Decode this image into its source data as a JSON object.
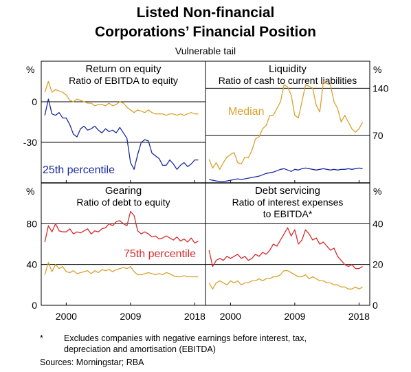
{
  "figure": {
    "title_line1": "Listed Non-financial",
    "title_line2": "Corporations’ Financial Position",
    "subtitle": "Vulnerable tail",
    "footnote_marker": "*",
    "footnote_line1": "Excludes companies with negative earnings before interest, tax,",
    "footnote_line2": "depreciation and amortisation (EBITDA)",
    "sources": "Sources:   Morningstar; RBA",
    "colors": {
      "median": "#d9a12c",
      "percentile25": "#1a2aa0",
      "percentile75": "#d9292c"
    }
  },
  "chart_data": [
    {
      "type": "line",
      "panel": "top-left",
      "title": "Return on equity",
      "subtitle_lines": [
        "Ratio of EBITDA to equity"
      ],
      "axis_unit": "%",
      "ylim": [
        -60,
        30
      ],
      "yticks": [
        0,
        -30
      ],
      "xlim": [
        1996.5,
        2019.5
      ],
      "xticks": [
        2000,
        2009,
        2018
      ],
      "xtick_labels": [
        "2000",
        "2009",
        "2018"
      ],
      "annotations": [
        {
          "text": "25th percentile",
          "color": "#1a2aa0"
        }
      ],
      "series": [
        {
          "color": "#d9a12c",
          "x": [
            1997,
            1997.5,
            1998,
            1998.5,
            1999,
            1999.5,
            2000,
            2000.5,
            2001,
            2001.5,
            2002,
            2002.5,
            2003,
            2003.5,
            2004,
            2004.5,
            2005,
            2005.5,
            2006,
            2006.5,
            2007,
            2007.5,
            2008,
            2008.5,
            2009,
            2009.5,
            2010,
            2010.5,
            2011,
            2011.5,
            2012,
            2012.5,
            2013,
            2013.5,
            2014,
            2014.5,
            2015,
            2015.5,
            2016,
            2016.5,
            2017,
            2017.5,
            2018,
            2018.5
          ],
          "values": [
            7,
            15,
            7,
            9,
            8,
            7,
            5,
            1,
            0,
            2,
            1,
            0,
            -1,
            -1,
            -3,
            -2,
            -2,
            -3,
            -1,
            -3,
            -2,
            0,
            -1,
            -4,
            -6,
            -8,
            -6,
            -7,
            -8,
            -6,
            -8,
            -9,
            -9,
            -9,
            -10,
            -9,
            -9,
            -10,
            -9,
            -10,
            -9,
            -8,
            -9,
            -9
          ]
        },
        {
          "color": "#1a2aa0",
          "x": [
            1997,
            1997.5,
            1998,
            1998.5,
            1999,
            1999.5,
            2000,
            2000.5,
            2001,
            2001.5,
            2002,
            2002.5,
            2003,
            2003.5,
            2004,
            2004.5,
            2005,
            2005.5,
            2006,
            2006.5,
            2007,
            2007.5,
            2008,
            2008.5,
            2009,
            2009.5,
            2010,
            2010.5,
            2011,
            2011.5,
            2012,
            2012.5,
            2013,
            2013.5,
            2014,
            2014.5,
            2015,
            2015.5,
            2016,
            2016.5,
            2017,
            2017.5,
            2018,
            2018.5
          ],
          "values": [
            -10,
            2,
            -9,
            -10,
            -8,
            -12,
            -12,
            -17,
            -24,
            -26,
            -20,
            -18,
            -21,
            -20,
            -18,
            -21,
            -23,
            -20,
            -22,
            -21,
            -23,
            -19,
            -23,
            -27,
            -45,
            -50,
            -39,
            -30,
            -28,
            -29,
            -38,
            -40,
            -42,
            -47,
            -47,
            -43,
            -46,
            -50,
            -47,
            -45,
            -48,
            -46,
            -43,
            -43
          ]
        }
      ]
    },
    {
      "type": "line",
      "panel": "top-right",
      "title": "Liquidity",
      "subtitle_lines": [
        "Ratio of cash to current liabilities"
      ],
      "axis_unit": "%",
      "ylim": [
        0,
        180
      ],
      "yticks": [
        140,
        70
      ],
      "xlim": [
        1996.5,
        2019.5
      ],
      "xticks": [
        2000,
        2009,
        2018
      ],
      "xtick_labels": [
        "2000",
        "2009",
        "2018"
      ],
      "annotations": [
        {
          "text": "Median",
          "color": "#d9a12c"
        }
      ],
      "series": [
        {
          "color": "#d9a12c",
          "x": [
            1997,
            1997.5,
            1998,
            1998.5,
            1999,
            1999.5,
            2000,
            2000.5,
            2001,
            2001.5,
            2002,
            2002.5,
            2003,
            2003.5,
            2004,
            2004.5,
            2005,
            2005.5,
            2006,
            2006.5,
            2007,
            2007.5,
            2008,
            2008.5,
            2009,
            2009.5,
            2010,
            2010.5,
            2011,
            2011.5,
            2012,
            2012.5,
            2013,
            2013.5,
            2014,
            2014.5,
            2015,
            2015.5,
            2016,
            2016.5,
            2017,
            2017.5,
            2018,
            2018.5
          ],
          "values": [
            35,
            22,
            30,
            20,
            30,
            38,
            42,
            45,
            30,
            28,
            38,
            37,
            48,
            65,
            68,
            80,
            85,
            100,
            100,
            110,
            120,
            145,
            142,
            130,
            100,
            96,
            120,
            145,
            143,
            140,
            115,
            105,
            150,
            147,
            145,
            120,
            110,
            90,
            100,
            90,
            80,
            75,
            80,
            90
          ]
        },
        {
          "color": "#1a2aa0",
          "x": [
            1997,
            1997.5,
            1998,
            1998.5,
            1999,
            1999.5,
            2000,
            2000.5,
            2001,
            2001.5,
            2002,
            2002.5,
            2003,
            2003.5,
            2004,
            2004.5,
            2005,
            2005.5,
            2006,
            2006.5,
            2007,
            2007.5,
            2008,
            2008.5,
            2009,
            2009.5,
            2010,
            2010.5,
            2011,
            2011.5,
            2012,
            2012.5,
            2013,
            2013.5,
            2014,
            2014.5,
            2015,
            2015.5,
            2016,
            2016.5,
            2017,
            2017.5,
            2018,
            2018.5
          ],
          "values": [
            5,
            4,
            3,
            2,
            2,
            3,
            4,
            5,
            6,
            5,
            6,
            7,
            8,
            9,
            10,
            12,
            14,
            15,
            16,
            18,
            20,
            21,
            19,
            17,
            20,
            19,
            21,
            22,
            21,
            20,
            19,
            20,
            21,
            20,
            19,
            20,
            19,
            20,
            20,
            21,
            20,
            21,
            22,
            21
          ]
        }
      ]
    },
    {
      "type": "line",
      "panel": "bottom-left",
      "title": "Gearing",
      "subtitle_lines": [
        "Ratio of debt to equity"
      ],
      "axis_unit": "%",
      "ylim": [
        0,
        120
      ],
      "yticks": [
        80,
        40,
        0
      ],
      "xlim": [
        1996.5,
        2019.5
      ],
      "xticks": [
        2000,
        2009,
        2018
      ],
      "xtick_labels": [
        "2000",
        "2009",
        "2018"
      ],
      "annotations": [
        {
          "text": "75th percentile",
          "color": "#d9292c"
        }
      ],
      "series": [
        {
          "color": "#d9292c",
          "x": [
            1997,
            1997.5,
            1998,
            1998.5,
            1999,
            1999.5,
            2000,
            2000.5,
            2001,
            2001.5,
            2002,
            2002.5,
            2003,
            2003.5,
            2004,
            2004.5,
            2005,
            2005.5,
            2006,
            2006.5,
            2007,
            2007.5,
            2008,
            2008.5,
            2009,
            2009.5,
            2010,
            2010.5,
            2011,
            2011.5,
            2012,
            2012.5,
            2013,
            2013.5,
            2014,
            2014.5,
            2015,
            2015.5,
            2016,
            2016.5,
            2017,
            2017.5,
            2018,
            2018.5
          ],
          "values": [
            62,
            78,
            72,
            80,
            73,
            72,
            72,
            75,
            70,
            72,
            71,
            73,
            75,
            70,
            73,
            72,
            75,
            76,
            80,
            78,
            82,
            83,
            80,
            78,
            92,
            88,
            73,
            70,
            72,
            70,
            67,
            68,
            65,
            66,
            68,
            66,
            64,
            67,
            63,
            65,
            62,
            66,
            61,
            63
          ]
        },
        {
          "color": "#d9a12c",
          "x": [
            1997,
            1997.5,
            1998,
            1998.5,
            1999,
            1999.5,
            2000,
            2000.5,
            2001,
            2001.5,
            2002,
            2002.5,
            2003,
            2003.5,
            2004,
            2004.5,
            2005,
            2005.5,
            2006,
            2006.5,
            2007,
            2007.5,
            2008,
            2008.5,
            2009,
            2009.5,
            2010,
            2010.5,
            2011,
            2011.5,
            2012,
            2012.5,
            2013,
            2013.5,
            2014,
            2014.5,
            2015,
            2015.5,
            2016,
            2016.5,
            2017,
            2017.5,
            2018,
            2018.5
          ],
          "values": [
            30,
            42,
            33,
            40,
            36,
            38,
            33,
            32,
            34,
            31,
            32,
            33,
            34,
            31,
            34,
            32,
            35,
            34,
            35,
            33,
            35,
            36,
            37,
            36,
            38,
            33,
            30,
            30,
            31,
            32,
            31,
            30,
            31,
            30,
            32,
            31,
            29,
            28,
            28,
            29,
            28,
            28,
            28,
            28
          ]
        }
      ]
    },
    {
      "type": "line",
      "panel": "bottom-right",
      "title": "Debt servicing",
      "subtitle_lines": [
        "Ratio of interest expenses",
        "to EBITDA*"
      ],
      "axis_unit": "%",
      "ylim": [
        0,
        60
      ],
      "yticks": [
        40,
        20,
        0
      ],
      "xlim": [
        1996.5,
        2019.5
      ],
      "xticks": [
        2000,
        2009,
        2018
      ],
      "xtick_labels": [
        "2000",
        "2009",
        "2018"
      ],
      "series": [
        {
          "color": "#d9292c",
          "x": [
            1997,
            1997.5,
            1998,
            1998.5,
            1999,
            1999.5,
            2000,
            2000.5,
            2001,
            2001.5,
            2002,
            2002.5,
            2003,
            2003.5,
            2004,
            2004.5,
            2005,
            2005.5,
            2006,
            2006.5,
            2007,
            2007.5,
            2008,
            2008.5,
            2009,
            2009.5,
            2010,
            2010.5,
            2011,
            2011.5,
            2012,
            2012.5,
            2013,
            2013.5,
            2014,
            2014.5,
            2015,
            2015.5,
            2016,
            2016.5,
            2017,
            2017.5,
            2018,
            2018.5
          ],
          "values": [
            27,
            19,
            22,
            23,
            22,
            24,
            23,
            24,
            25,
            23,
            24,
            22,
            23,
            25,
            24,
            26,
            25,
            27,
            30,
            29,
            32,
            35,
            38,
            34,
            37,
            30,
            32,
            37,
            35,
            32,
            33,
            30,
            31,
            29,
            27,
            28,
            24,
            22,
            20,
            19,
            20,
            18,
            18,
            19
          ]
        },
        {
          "color": "#d9a12c",
          "x": [
            1997,
            1997.5,
            1998,
            1998.5,
            1999,
            1999.5,
            2000,
            2000.5,
            2001,
            2001.5,
            2002,
            2002.5,
            2003,
            2003.5,
            2004,
            2004.5,
            2005,
            2005.5,
            2006,
            2006.5,
            2007,
            2007.5,
            2008,
            2008.5,
            2009,
            2009.5,
            2010,
            2010.5,
            2011,
            2011.5,
            2012,
            2012.5,
            2013,
            2013.5,
            2014,
            2014.5,
            2015,
            2015.5,
            2016,
            2016.5,
            2017,
            2017.5,
            2018,
            2018.5
          ],
          "values": [
            11,
            8,
            11,
            12,
            11,
            10,
            12,
            11,
            12,
            10,
            11,
            11,
            12,
            12,
            13,
            12,
            13,
            13,
            14,
            14,
            15,
            17,
            17,
            16,
            15,
            14,
            14,
            15,
            13,
            14,
            13,
            12,
            12,
            11,
            11,
            10,
            10,
            9,
            9,
            8,
            8,
            9,
            8,
            9
          ]
        }
      ]
    }
  ]
}
